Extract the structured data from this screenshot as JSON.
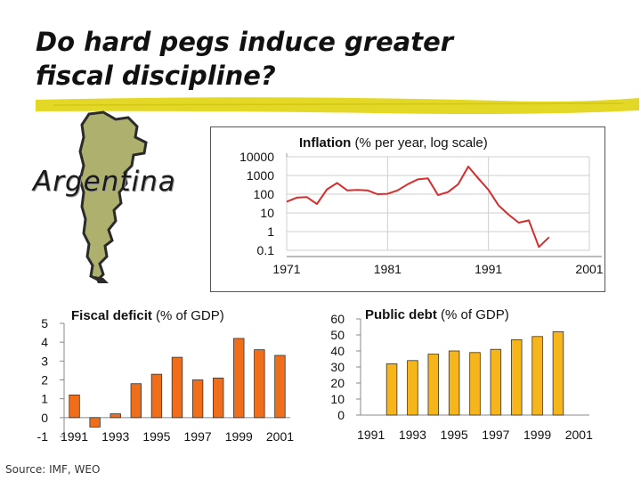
{
  "title": "Do hard pegs induce greater fiscal discipline?",
  "country_label": "Argentina",
  "source_note": "Source:  IMF, WEO",
  "colors": {
    "highlighter": "#e2d61a",
    "inflation_line": "#d62d2d",
    "deficit_bar": "#f06e1a",
    "debt_bar": "#f7b51c",
    "map_fill": "#aeb16e"
  },
  "chart_data": [
    {
      "id": "inflation",
      "type": "line",
      "title": "Inflation",
      "title_suffix": "(% per year, log scale)",
      "y_scale": "log",
      "ylim": [
        0.1,
        10000
      ],
      "y_ticks": [
        "10000",
        "1000",
        "100",
        "10",
        "1",
        "0.1"
      ],
      "xlim": [
        1971,
        2001
      ],
      "x_ticks": [
        "1971",
        "1981",
        "1991",
        "2001"
      ],
      "grid": true,
      "x": [
        1971,
        1972,
        1973,
        1974,
        1975,
        1976,
        1977,
        1978,
        1979,
        1980,
        1981,
        1982,
        1983,
        1984,
        1985,
        1986,
        1987,
        1988,
        1989,
        1990,
        1991,
        1992,
        1993,
        1994,
        1995,
        1996,
        1997
      ],
      "values": [
        40,
        65,
        70,
        30,
        180,
        400,
        160,
        170,
        160,
        100,
        105,
        160,
        340,
        620,
        700,
        90,
        130,
        340,
        3000,
        700,
        170,
        25,
        8,
        3,
        4,
        0.15,
        0.5
      ],
      "series": [
        {
          "name": "",
          "values": "see values"
        }
      ]
    },
    {
      "id": "fiscal_deficit",
      "type": "bar",
      "title": "Fiscal deficit",
      "title_suffix": "(% of GDP)",
      "ylim": [
        -1,
        5
      ],
      "y_ticks": [
        "5",
        "4",
        "3",
        "2",
        "1",
        "0",
        "-1"
      ],
      "x_ticks": [
        "1991",
        "1993",
        "1995",
        "1997",
        "1999",
        "2001"
      ],
      "categories": [
        "1991",
        "1992",
        "1993",
        "1994",
        "1995",
        "1996",
        "1997",
        "1998",
        "1999",
        "2000",
        "2001"
      ],
      "values": [
        1.2,
        -0.5,
        0.2,
        1.8,
        2.3,
        3.2,
        2.0,
        2.1,
        4.2,
        3.6,
        3.3
      ],
      "grid": false
    },
    {
      "id": "public_debt",
      "type": "bar",
      "title": "Public debt",
      "title_suffix": "(% of GDP)",
      "ylim": [
        0,
        60
      ],
      "y_ticks": [
        "60",
        "50",
        "40",
        "30",
        "20",
        "10",
        "0"
      ],
      "x_ticks": [
        "1991",
        "1993",
        "1995",
        "1997",
        "1999",
        "2001"
      ],
      "categories": [
        "1992",
        "1993",
        "1994",
        "1995",
        "1996",
        "1997",
        "1998",
        "1999",
        "2000"
      ],
      "values": [
        32,
        34,
        38,
        40,
        39,
        41,
        47,
        49,
        52
      ],
      "grid": false
    }
  ]
}
